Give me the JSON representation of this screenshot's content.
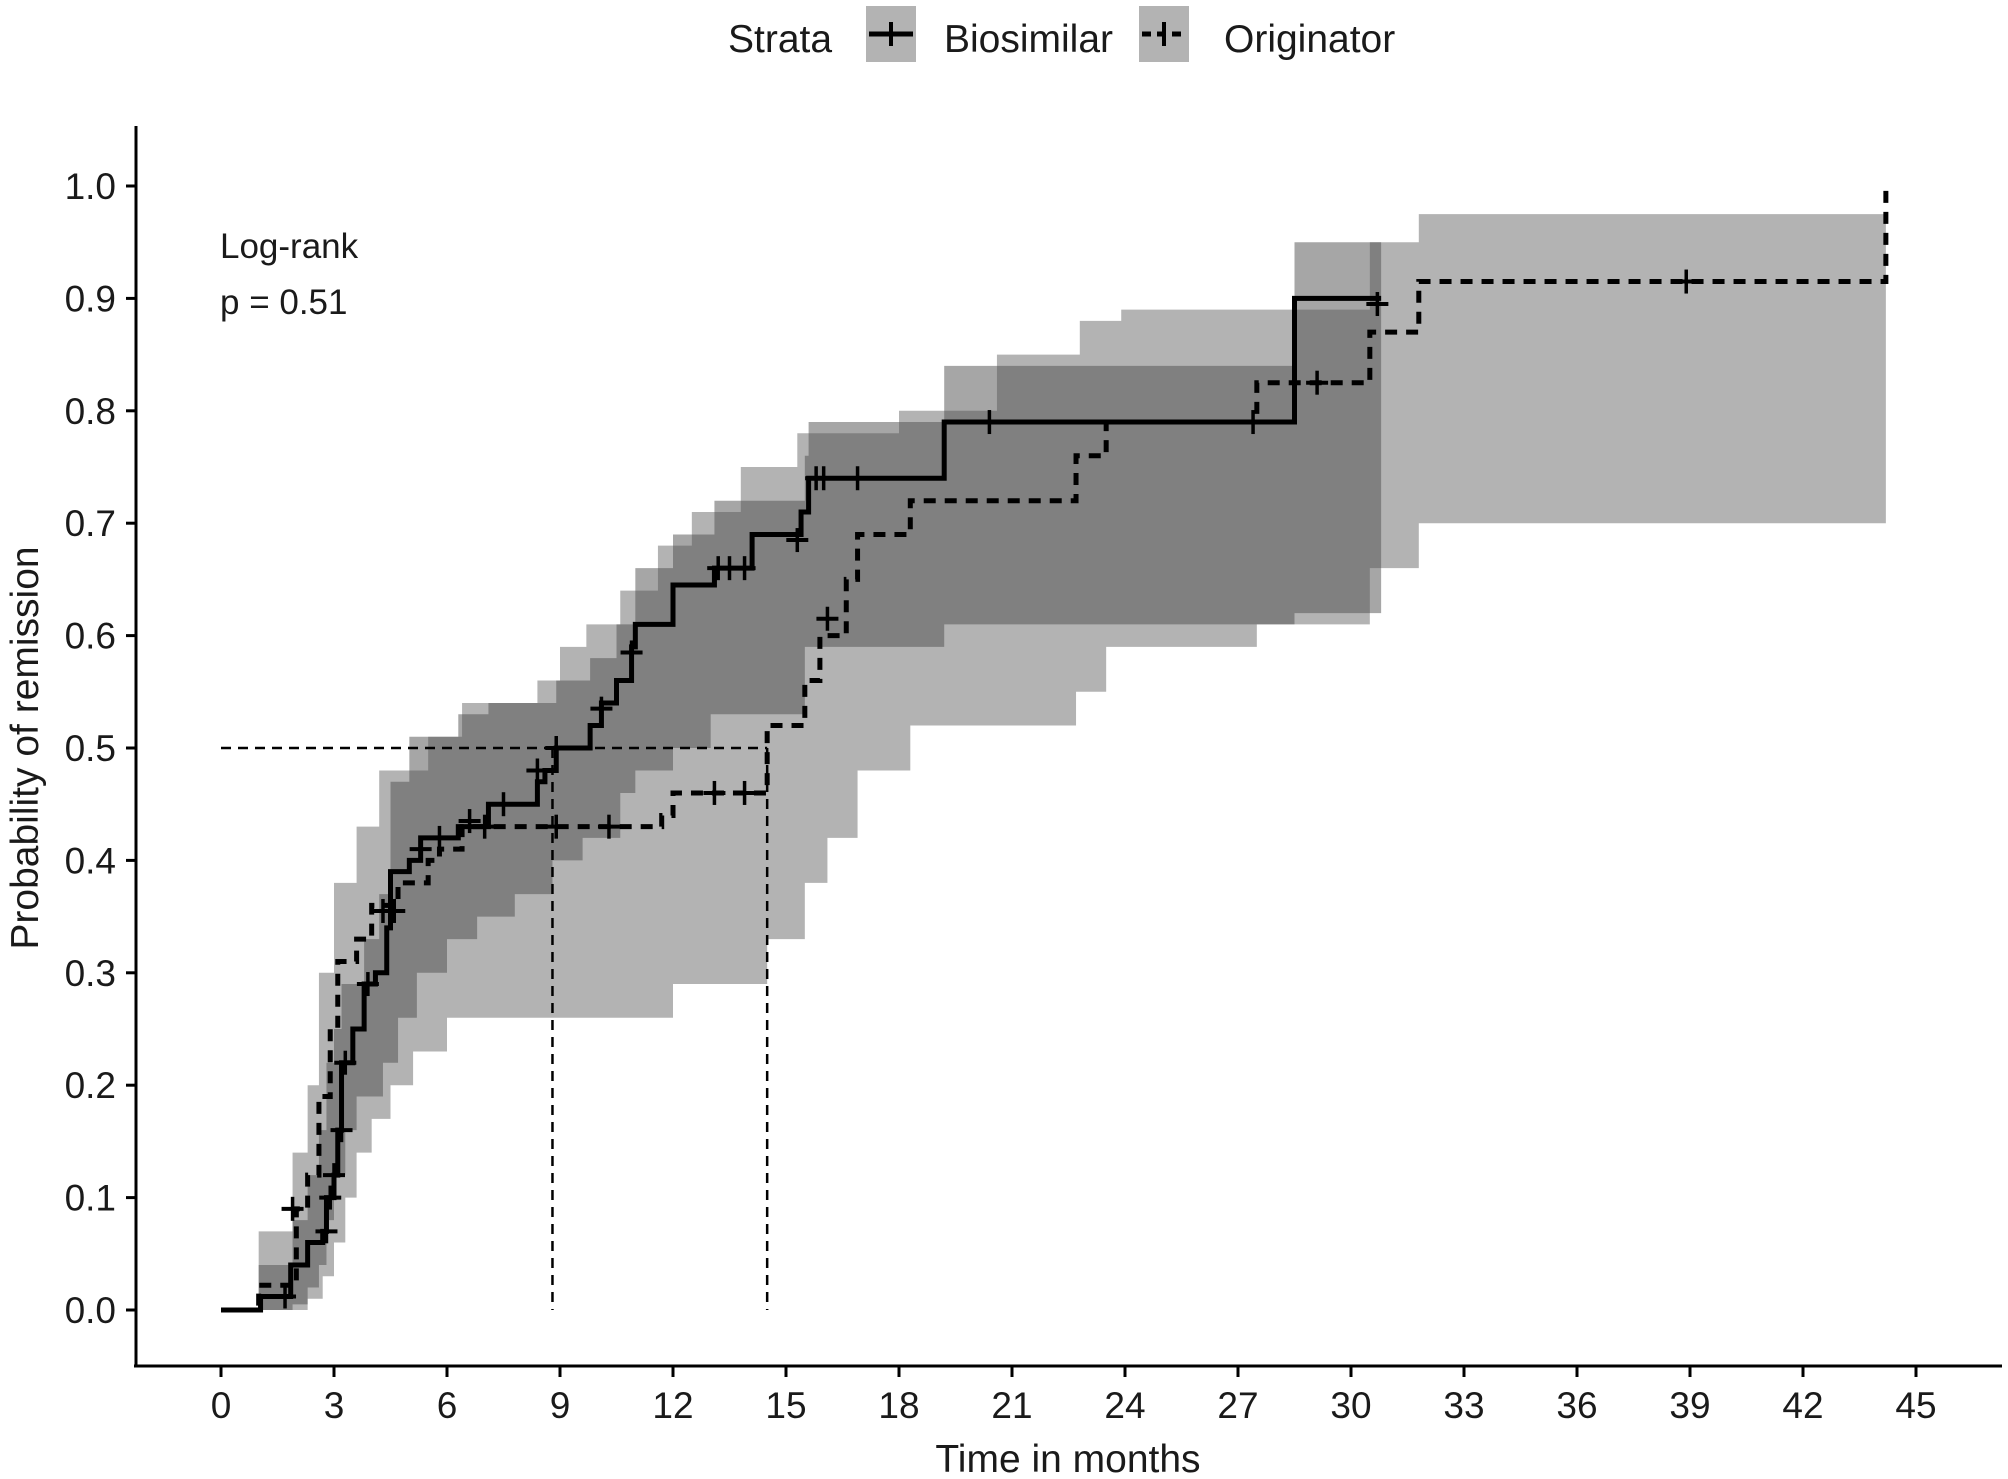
{
  "chart_data": {
    "type": "line",
    "subtype": "kaplan-meier-cumulative-incidence",
    "title": "",
    "xlabel": "Time in months",
    "ylabel": "Probability of remission",
    "xlim": [
      0,
      45
    ],
    "ylim": [
      0,
      1.0
    ],
    "x_ticks": [
      0,
      3,
      6,
      9,
      12,
      15,
      18,
      21,
      24,
      27,
      30,
      33,
      36,
      39,
      42,
      45
    ],
    "y_ticks": [
      0.0,
      0.1,
      0.2,
      0.3,
      0.4,
      0.5,
      0.6,
      0.7,
      0.8,
      0.9,
      1.0
    ],
    "y_tick_labels": [
      "0.0",
      "0.1",
      "0.2",
      "0.3",
      "0.4",
      "0.5",
      "0.6",
      "0.7",
      "0.8",
      "0.9",
      "1.0"
    ],
    "grid": false,
    "legend": {
      "title": "Strata",
      "placement": "top",
      "entries": [
        "Biosimilar",
        "Originator"
      ]
    },
    "annotation": {
      "line1": "Log-rank",
      "line2": "p = 0.51"
    },
    "median_reference": {
      "y": 0.5,
      "x_biosimilar": 8.8,
      "x_originator": 14.5
    },
    "series": [
      {
        "name": "Biosimilar",
        "linestyle": "solid",
        "color": "#000000",
        "ci_color": "#808080",
        "steps": [
          [
            0,
            0
          ],
          [
            1.05,
            0.012
          ],
          [
            1.85,
            0.04
          ],
          [
            2.3,
            0.06
          ],
          [
            2.7,
            0.07
          ],
          [
            2.8,
            0.1
          ],
          [
            3.0,
            0.12
          ],
          [
            3.1,
            0.16
          ],
          [
            3.2,
            0.22
          ],
          [
            3.5,
            0.25
          ],
          [
            3.8,
            0.29
          ],
          [
            4.1,
            0.3
          ],
          [
            4.4,
            0.34
          ],
          [
            4.5,
            0.39
          ],
          [
            5.0,
            0.4
          ],
          [
            5.3,
            0.42
          ],
          [
            6.3,
            0.43
          ],
          [
            7.1,
            0.45
          ],
          [
            8.4,
            0.47
          ],
          [
            8.6,
            0.48
          ],
          [
            8.9,
            0.5
          ],
          [
            9.8,
            0.52
          ],
          [
            10.1,
            0.54
          ],
          [
            10.5,
            0.56
          ],
          [
            10.9,
            0.59
          ],
          [
            11.0,
            0.61
          ],
          [
            12.0,
            0.645
          ],
          [
            13.1,
            0.66
          ],
          [
            14.1,
            0.69
          ],
          [
            15.4,
            0.71
          ],
          [
            15.6,
            0.74
          ],
          [
            19.2,
            0.79
          ],
          [
            28.5,
            0.9
          ],
          [
            30.8,
            0.9
          ]
        ],
        "censored": [
          [
            1.7,
            0.012
          ],
          [
            2.8,
            0.07
          ],
          [
            2.9,
            0.1
          ],
          [
            3.0,
            0.12
          ],
          [
            3.2,
            0.16
          ],
          [
            3.3,
            0.22
          ],
          [
            3.9,
            0.29
          ],
          [
            4.6,
            0.355
          ],
          [
            5.3,
            0.41
          ],
          [
            5.8,
            0.42
          ],
          [
            6.6,
            0.435
          ],
          [
            7.5,
            0.45
          ],
          [
            8.4,
            0.48
          ],
          [
            8.9,
            0.5
          ],
          [
            10.1,
            0.535
          ],
          [
            10.9,
            0.585
          ],
          [
            13.2,
            0.66
          ],
          [
            13.5,
            0.66
          ],
          [
            13.9,
            0.66
          ],
          [
            15.3,
            0.685
          ],
          [
            15.8,
            0.74
          ],
          [
            16.0,
            0.74
          ],
          [
            16.9,
            0.74
          ],
          [
            20.4,
            0.79
          ],
          [
            27.4,
            0.79
          ],
          [
            30.7,
            0.895
          ]
        ],
        "ci_lower": [
          [
            0,
            0
          ],
          [
            1.9,
            0.005
          ],
          [
            2.3,
            0.02
          ],
          [
            2.6,
            0.04
          ],
          [
            2.8,
            0.08
          ],
          [
            3.0,
            0.12
          ],
          [
            3.3,
            0.16
          ],
          [
            3.6,
            0.19
          ],
          [
            4.3,
            0.22
          ],
          [
            4.7,
            0.26
          ],
          [
            5.2,
            0.3
          ],
          [
            6.0,
            0.33
          ],
          [
            6.8,
            0.35
          ],
          [
            7.8,
            0.37
          ],
          [
            8.8,
            0.4
          ],
          [
            9.6,
            0.42
          ],
          [
            10.6,
            0.46
          ],
          [
            11.0,
            0.48
          ],
          [
            12.0,
            0.5
          ],
          [
            13.0,
            0.53
          ],
          [
            15.5,
            0.59
          ],
          [
            19.2,
            0.61
          ],
          [
            28.5,
            0.62
          ],
          [
            30.8,
            0.62
          ]
        ],
        "ci_upper": [
          [
            0,
            0
          ],
          [
            1.0,
            0.04
          ],
          [
            1.9,
            0.08
          ],
          [
            2.3,
            0.12
          ],
          [
            2.6,
            0.16
          ],
          [
            2.8,
            0.22
          ],
          [
            3.0,
            0.25
          ],
          [
            3.2,
            0.29
          ],
          [
            3.8,
            0.33
          ],
          [
            4.2,
            0.37
          ],
          [
            4.5,
            0.47
          ],
          [
            5.0,
            0.51
          ],
          [
            6.3,
            0.53
          ],
          [
            7.1,
            0.54
          ],
          [
            8.9,
            0.56
          ],
          [
            9.8,
            0.58
          ],
          [
            10.5,
            0.61
          ],
          [
            11.0,
            0.66
          ],
          [
            12.0,
            0.69
          ],
          [
            13.1,
            0.72
          ],
          [
            15.5,
            0.76
          ],
          [
            15.6,
            0.79
          ],
          [
            19.2,
            0.84
          ],
          [
            28.5,
            0.95
          ],
          [
            30.8,
            0.95
          ]
        ]
      },
      {
        "name": "Originator",
        "linestyle": "dashed",
        "color": "#000000",
        "ci_color": "#b3b3b3",
        "steps": [
          [
            0,
            0
          ],
          [
            1.0,
            0.022
          ],
          [
            2.0,
            0.09
          ],
          [
            2.3,
            0.12
          ],
          [
            2.6,
            0.19
          ],
          [
            2.9,
            0.25
          ],
          [
            3.1,
            0.31
          ],
          [
            3.6,
            0.33
          ],
          [
            4.0,
            0.36
          ],
          [
            4.7,
            0.38
          ],
          [
            5.5,
            0.4
          ],
          [
            5.8,
            0.41
          ],
          [
            6.4,
            0.43
          ],
          [
            11.7,
            0.44
          ],
          [
            12.0,
            0.46
          ],
          [
            14.5,
            0.52
          ],
          [
            15.5,
            0.56
          ],
          [
            15.9,
            0.6
          ],
          [
            16.6,
            0.65
          ],
          [
            16.9,
            0.69
          ],
          [
            18.3,
            0.72
          ],
          [
            22.7,
            0.76
          ],
          [
            23.5,
            0.79
          ],
          [
            27.5,
            0.825
          ],
          [
            30.5,
            0.87
          ],
          [
            31.8,
            0.915
          ],
          [
            44.2,
            0.915
          ],
          [
            44.2,
            1.0
          ]
        ],
        "censored": [
          [
            1.9,
            0.09
          ],
          [
            4.3,
            0.355
          ],
          [
            7.0,
            0.43
          ],
          [
            8.9,
            0.43
          ],
          [
            10.3,
            0.43
          ],
          [
            13.1,
            0.46
          ],
          [
            13.9,
            0.46
          ],
          [
            16.1,
            0.615
          ],
          [
            29.1,
            0.825
          ],
          [
            38.9,
            0.915
          ]
        ],
        "ci_lower": [
          [
            0,
            0
          ],
          [
            2.3,
            0.01
          ],
          [
            2.7,
            0.03
          ],
          [
            3.0,
            0.06
          ],
          [
            3.3,
            0.1
          ],
          [
            3.6,
            0.14
          ],
          [
            4.0,
            0.17
          ],
          [
            4.5,
            0.2
          ],
          [
            5.1,
            0.23
          ],
          [
            6.0,
            0.26
          ],
          [
            11.7,
            0.26
          ],
          [
            12.0,
            0.29
          ],
          [
            14.5,
            0.33
          ],
          [
            15.5,
            0.38
          ],
          [
            16.1,
            0.42
          ],
          [
            16.9,
            0.48
          ],
          [
            18.3,
            0.52
          ],
          [
            22.7,
            0.55
          ],
          [
            23.5,
            0.59
          ],
          [
            27.5,
            0.61
          ],
          [
            30.5,
            0.66
          ],
          [
            31.8,
            0.7
          ],
          [
            44.2,
            0.7
          ]
        ],
        "ci_upper": [
          [
            0,
            0
          ],
          [
            1.0,
            0.07
          ],
          [
            1.9,
            0.14
          ],
          [
            2.3,
            0.2
          ],
          [
            2.6,
            0.3
          ],
          [
            3.0,
            0.38
          ],
          [
            3.6,
            0.43
          ],
          [
            4.2,
            0.48
          ],
          [
            5.5,
            0.51
          ],
          [
            6.4,
            0.54
          ],
          [
            8.4,
            0.56
          ],
          [
            9.0,
            0.59
          ],
          [
            9.7,
            0.61
          ],
          [
            10.6,
            0.64
          ],
          [
            11.6,
            0.68
          ],
          [
            12.5,
            0.71
          ],
          [
            13.8,
            0.75
          ],
          [
            15.3,
            0.78
          ],
          [
            18.0,
            0.8
          ],
          [
            20.6,
            0.85
          ],
          [
            22.8,
            0.88
          ],
          [
            23.9,
            0.89
          ],
          [
            30.5,
            0.95
          ],
          [
            31.8,
            0.975
          ],
          [
            44.2,
            0.975
          ]
        ]
      }
    ]
  }
}
